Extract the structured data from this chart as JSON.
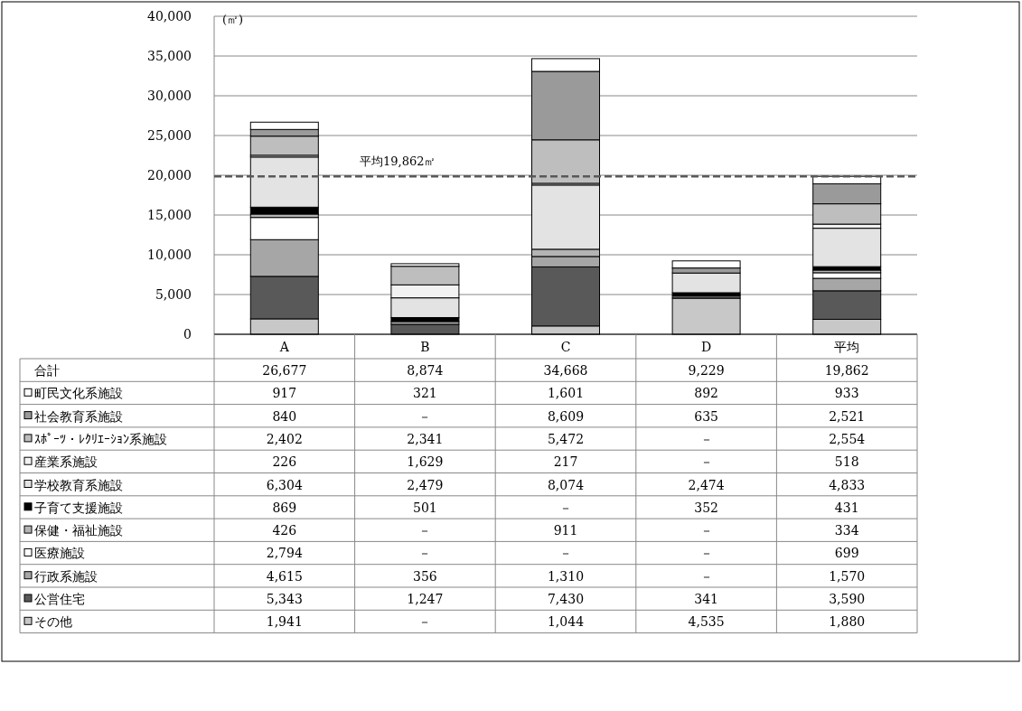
{
  "chart_data": {
    "type": "bar",
    "stacked": true,
    "ylabel": "(㎡)",
    "categories": [
      "A",
      "B",
      "C",
      "D",
      "平均"
    ],
    "ylim": [
      0,
      40000
    ],
    "yticks": [
      {
        "value": 0,
        "label": "0"
      },
      {
        "value": 5000,
        "label": "5,000"
      },
      {
        "value": 10000,
        "label": "10,000"
      },
      {
        "value": 15000,
        "label": "15,000"
      },
      {
        "value": 20000,
        "label": "20,000"
      },
      {
        "value": 25000,
        "label": "25,000"
      },
      {
        "value": 30000,
        "label": "30,000"
      },
      {
        "value": 35000,
        "label": "35,000"
      },
      {
        "value": 40000,
        "label": "40,000"
      }
    ],
    "grid": "y",
    "legend": "bottom",
    "series": [
      {
        "name": "その他",
        "color": "#c8c8c8",
        "values": [
          1941,
          null,
          1044,
          4535,
          1880
        ],
        "value_labels": [
          "1,941",
          "－",
          "1,044",
          "4,535",
          "1,880"
        ]
      },
      {
        "name": "公営住宅",
        "color": "#595959",
        "values": [
          5343,
          1247,
          7430,
          341,
          3590
        ],
        "value_labels": [
          "5,343",
          "1,247",
          "7,430",
          "341",
          "3,590"
        ]
      },
      {
        "name": "行政系施設",
        "color": "#a6a6a6",
        "values": [
          4615,
          356,
          1310,
          null,
          1570
        ],
        "value_labels": [
          "4,615",
          "356",
          "1,310",
          "－",
          "1,570"
        ]
      },
      {
        "name": "医療施設",
        "color": "#ffffff",
        "values": [
          2794,
          null,
          null,
          null,
          699
        ],
        "value_labels": [
          "2,794",
          "－",
          "－",
          "－",
          "699"
        ]
      },
      {
        "name": "保健・福祉施設",
        "color": "#b4b4b4",
        "values": [
          426,
          null,
          911,
          null,
          334
        ],
        "value_labels": [
          "426",
          "－",
          "911",
          "－",
          "334"
        ]
      },
      {
        "name": "子育て支援施設",
        "color": "#000000",
        "values": [
          869,
          501,
          null,
          352,
          431
        ],
        "value_labels": [
          "869",
          "501",
          "－",
          "352",
          "431"
        ]
      },
      {
        "name": "学校教育系施設",
        "color": "#e3e3e3",
        "values": [
          6304,
          2479,
          8074,
          2474,
          4833
        ],
        "value_labels": [
          "6,304",
          "2,479",
          "8,074",
          "2,474",
          "4,833"
        ]
      },
      {
        "name": "産業系施設",
        "color": "#f2f2f2",
        "values": [
          226,
          1629,
          217,
          null,
          518
        ],
        "value_labels": [
          "226",
          "1,629",
          "217",
          "－",
          "518"
        ]
      },
      {
        "name": "ｽﾎﾟｰﾂ・ﾚｸﾘｴｰｼｮﾝ系施設",
        "color": "#bebebe",
        "values": [
          2402,
          2341,
          5472,
          null,
          2554
        ],
        "value_labels": [
          "2,402",
          "2,341",
          "5,472",
          "－",
          "2,554"
        ]
      },
      {
        "name": "社会教育系施設",
        "color": "#9a9a9a",
        "values": [
          840,
          null,
          8609,
          635,
          2521
        ],
        "value_labels": [
          "840",
          "－",
          "8,609",
          "635",
          "2,521"
        ]
      },
      {
        "name": "町民文化系施設",
        "color": "#ffffff",
        "values": [
          917,
          321,
          1601,
          892,
          933
        ],
        "value_labels": [
          "917",
          "321",
          "1,601",
          "892",
          "933"
        ]
      }
    ],
    "totals": [
      "26,677",
      "8,874",
      "34,668",
      "9,229",
      "19,862"
    ],
    "annotations": [
      "合計"
    ],
    "ref_lines": [
      {
        "axis": "y",
        "value": 19862,
        "label": "平均19,862㎡",
        "line_style": "dashed",
        "color": "#595959"
      }
    ]
  }
}
